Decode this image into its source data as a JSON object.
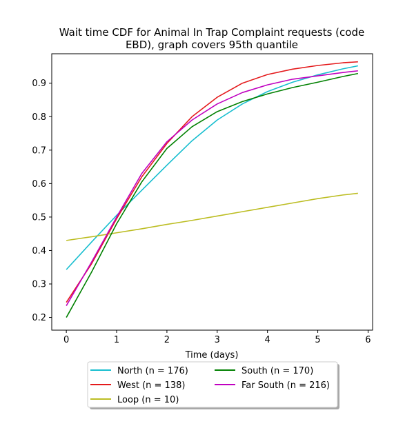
{
  "chart_data": {
    "type": "line",
    "title_line1": "Wait time CDF for Animal In Trap Complaint  requests (code",
    "title_line2": "EBD), graph covers 95th quantile",
    "xlabel": "Time (days)",
    "ylabel": "",
    "xlim": [
      -0.29,
      6.09
    ],
    "ylim": [
      0.162,
      0.988
    ],
    "x_ticks": [
      "0",
      "1",
      "2",
      "3",
      "4",
      "5",
      "6"
    ],
    "y_ticks": [
      "0.2",
      "0.3",
      "0.4",
      "0.5",
      "0.6",
      "0.7",
      "0.8",
      "0.9"
    ],
    "grid": false,
    "legend_position": "below",
    "x": [
      0,
      0.5,
      1.0,
      1.5,
      2.0,
      2.5,
      3.0,
      3.5,
      4.0,
      4.5,
      5.0,
      5.5,
      5.8
    ],
    "series": [
      {
        "name": "North (n = 176)",
        "color": "#17becf",
        "values": [
          0.343,
          0.425,
          0.505,
          0.58,
          0.655,
          0.728,
          0.79,
          0.838,
          0.875,
          0.903,
          0.925,
          0.943,
          0.952
        ]
      },
      {
        "name": "West (n = 138)",
        "color": "#e41a1c",
        "values": [
          0.245,
          0.36,
          0.495,
          0.62,
          0.72,
          0.8,
          0.858,
          0.9,
          0.926,
          0.942,
          0.953,
          0.961,
          0.964
        ]
      },
      {
        "name": "Loop (n = 10)",
        "color": "#bcbd22",
        "values": [
          0.43,
          0.441,
          0.453,
          0.465,
          0.478,
          0.49,
          0.503,
          0.516,
          0.529,
          0.542,
          0.555,
          0.566,
          0.571
        ]
      },
      {
        "name": "South (n = 170)",
        "color": "#008000",
        "values": [
          0.2,
          0.335,
          0.48,
          0.605,
          0.705,
          0.77,
          0.815,
          0.845,
          0.868,
          0.887,
          0.903,
          0.92,
          0.929
        ]
      },
      {
        "name": "Far South (n = 216)",
        "color": "#c000c0",
        "values": [
          0.235,
          0.365,
          0.5,
          0.63,
          0.725,
          0.79,
          0.838,
          0.872,
          0.895,
          0.912,
          0.922,
          0.932,
          0.937
        ]
      }
    ]
  }
}
